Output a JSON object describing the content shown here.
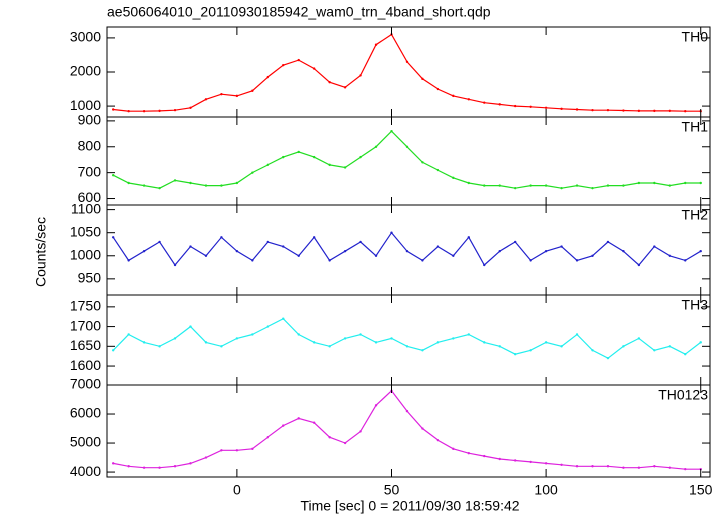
{
  "chart_data": [
    {
      "type": "line",
      "title": "ae506064010_20110930185942_wam0_trn_4band_short.qdp",
      "label": "TH0",
      "color": "#ff0000",
      "x": [
        -40,
        -35,
        -30,
        -25,
        -20,
        -15,
        -10,
        -5,
        0,
        5,
        10,
        15,
        20,
        25,
        30,
        35,
        40,
        45,
        50,
        55,
        60,
        65,
        70,
        75,
        80,
        85,
        90,
        95,
        100,
        105,
        110,
        115,
        120,
        125,
        130,
        135,
        140,
        145,
        150
      ],
      "values": [
        900,
        850,
        850,
        860,
        880,
        950,
        1200,
        1350,
        1300,
        1450,
        1850,
        2200,
        2350,
        2100,
        1700,
        1550,
        1900,
        2800,
        3100,
        2300,
        1800,
        1500,
        1300,
        1200,
        1100,
        1050,
        1000,
        980,
        950,
        920,
        900,
        880,
        880,
        870,
        860,
        860,
        860,
        850,
        850
      ],
      "xlim": [
        -42,
        153
      ],
      "ylim": [
        680,
        3320
      ],
      "yticks": [
        1000,
        2000,
        3000
      ]
    },
    {
      "type": "line",
      "label": "TH1",
      "color": "#22dd22",
      "x": [
        -40,
        -35,
        -30,
        -25,
        -20,
        -15,
        -10,
        -5,
        0,
        5,
        10,
        15,
        20,
        25,
        30,
        35,
        40,
        45,
        50,
        55,
        60,
        65,
        70,
        75,
        80,
        85,
        90,
        95,
        100,
        105,
        110,
        115,
        120,
        125,
        130,
        135,
        140,
        145,
        150
      ],
      "values": [
        690,
        660,
        650,
        640,
        670,
        660,
        650,
        650,
        660,
        700,
        730,
        760,
        780,
        760,
        730,
        720,
        760,
        800,
        860,
        800,
        740,
        710,
        680,
        660,
        650,
        650,
        640,
        650,
        650,
        640,
        650,
        640,
        650,
        650,
        660,
        660,
        650,
        660,
        660
      ],
      "xlim": [
        -42,
        153
      ],
      "ylim": [
        575,
        915
      ],
      "yticks": [
        600,
        700,
        800,
        900
      ]
    },
    {
      "type": "line",
      "label": "TH2",
      "color": "#2222cc",
      "y_label": "Counts/sec",
      "x": [
        -40,
        -35,
        -30,
        -25,
        -20,
        -15,
        -10,
        -5,
        0,
        5,
        10,
        15,
        20,
        25,
        30,
        35,
        40,
        45,
        50,
        55,
        60,
        65,
        70,
        75,
        80,
        85,
        90,
        95,
        100,
        105,
        110,
        115,
        120,
        125,
        130,
        135,
        140,
        145,
        150
      ],
      "values": [
        1040,
        990,
        1010,
        1030,
        980,
        1020,
        1000,
        1040,
        1010,
        990,
        1030,
        1020,
        1000,
        1040,
        990,
        1010,
        1030,
        1000,
        1050,
        1010,
        990,
        1020,
        1000,
        1040,
        980,
        1010,
        1030,
        990,
        1010,
        1020,
        990,
        1000,
        1030,
        1010,
        980,
        1020,
        1000,
        990,
        1010
      ],
      "xlim": [
        -42,
        153
      ],
      "ylim": [
        915,
        1110
      ],
      "yticks": [
        950,
        1000,
        1050,
        1100
      ]
    },
    {
      "type": "line",
      "label": "TH3",
      "color": "#22eeee",
      "x": [
        -40,
        -35,
        -30,
        -25,
        -20,
        -15,
        -10,
        -5,
        0,
        5,
        10,
        15,
        20,
        25,
        30,
        35,
        40,
        45,
        50,
        55,
        60,
        65,
        70,
        75,
        80,
        85,
        90,
        95,
        100,
        105,
        110,
        115,
        120,
        125,
        130,
        135,
        140,
        145,
        150
      ],
      "values": [
        1640,
        1680,
        1660,
        1650,
        1670,
        1700,
        1660,
        1650,
        1670,
        1680,
        1700,
        1720,
        1680,
        1660,
        1650,
        1670,
        1680,
        1660,
        1670,
        1650,
        1640,
        1660,
        1670,
        1680,
        1660,
        1650,
        1630,
        1640,
        1660,
        1650,
        1680,
        1640,
        1620,
        1650,
        1670,
        1640,
        1650,
        1630,
        1660
      ],
      "xlim": [
        -42,
        153
      ],
      "ylim": [
        1552,
        1780
      ],
      "yticks": [
        1600,
        1650,
        1700,
        1750
      ]
    },
    {
      "type": "line",
      "label": "TH0123",
      "color": "#dd22dd",
      "x_label": "Time [sec] 0 = 2011/09/30 18:59:42",
      "x": [
        -40,
        -35,
        -30,
        -25,
        -20,
        -15,
        -10,
        -5,
        0,
        5,
        10,
        15,
        20,
        25,
        30,
        35,
        40,
        45,
        50,
        55,
        60,
        65,
        70,
        75,
        80,
        85,
        90,
        95,
        100,
        105,
        110,
        115,
        120,
        125,
        130,
        135,
        140,
        145,
        150
      ],
      "values": [
        4300,
        4200,
        4150,
        4150,
        4200,
        4300,
        4500,
        4750,
        4750,
        4800,
        5200,
        5600,
        5850,
        5700,
        5200,
        5000,
        5400,
        6300,
        6800,
        6100,
        5500,
        5100,
        4800,
        4650,
        4550,
        4450,
        4400,
        4350,
        4300,
        4250,
        4200,
        4200,
        4200,
        4150,
        4150,
        4200,
        4150,
        4100,
        4100
      ],
      "xlim": [
        -42,
        153
      ],
      "ylim": [
        3830,
        7000
      ],
      "yticks": [
        4000,
        5000,
        6000,
        7000
      ],
      "xticks": [
        0,
        50,
        100,
        150
      ]
    }
  ]
}
